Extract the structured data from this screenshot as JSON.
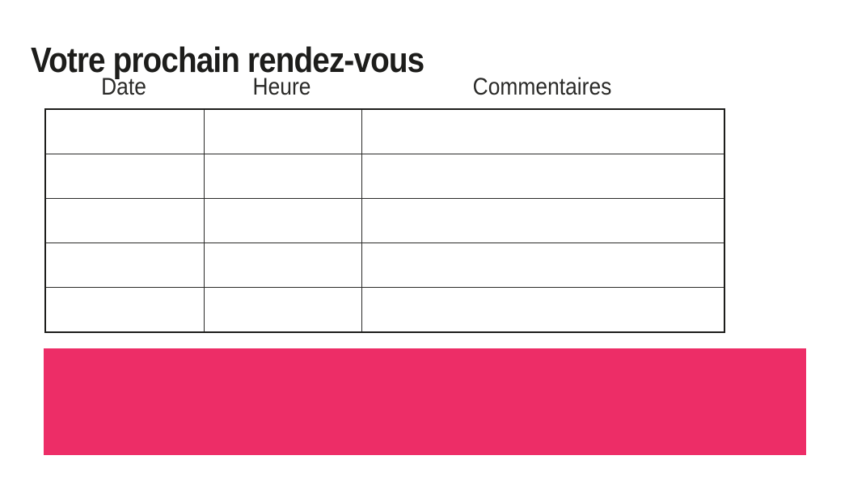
{
  "page": {
    "title": "Votre prochain rendez-vous"
  },
  "table": {
    "headers": [
      "Date",
      "Heure",
      "Commentaires"
    ],
    "rows": [
      [
        "",
        "",
        ""
      ],
      [
        "",
        "",
        ""
      ],
      [
        "",
        "",
        ""
      ],
      [
        "",
        "",
        ""
      ],
      [
        "",
        "",
        ""
      ]
    ]
  },
  "colors": {
    "banner_pink": "#ED2D67",
    "border": "#1D1D1B",
    "text": "#1D1D1B"
  }
}
